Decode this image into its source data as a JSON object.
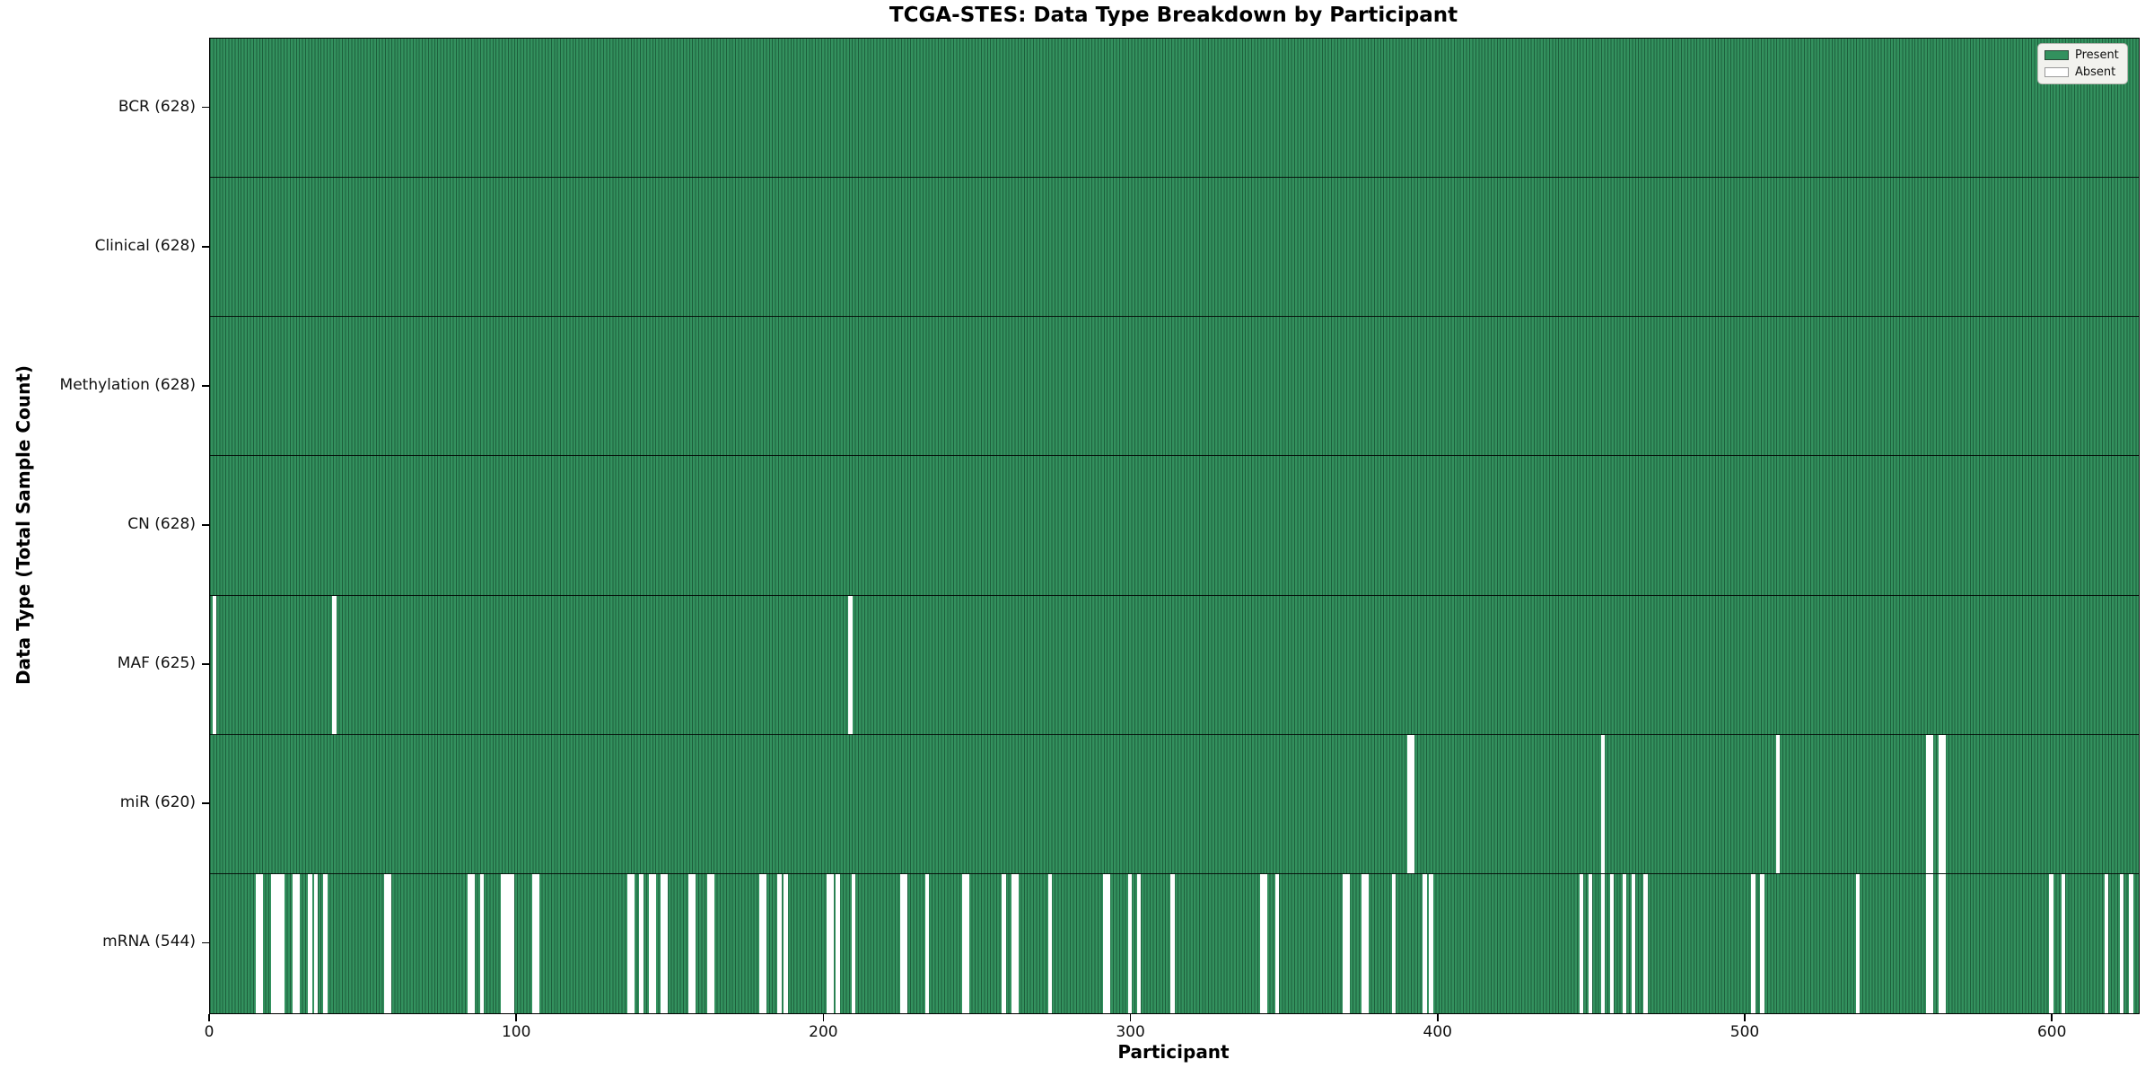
{
  "chart_data": {
    "type": "heatmap",
    "title": "TCGA-STES: Data Type Breakdown by Participant",
    "xlabel": "Participant",
    "ylabel": "Data Type (Total Sample Count)",
    "x_ticks": [
      0,
      100,
      200,
      300,
      400,
      500,
      600
    ],
    "x_range": [
      0,
      628
    ],
    "n_participants": 628,
    "grid": false,
    "legend": {
      "position": "upper-right",
      "entries": [
        {
          "label": "Present",
          "color": "#33915e"
        },
        {
          "label": "Absent",
          "color": "#ffffff"
        }
      ]
    },
    "colors": {
      "present": "#33915e",
      "absent": "#ffffff",
      "cell_edge": "rgba(8,46,26,0.5)",
      "row_separator": "rgba(0,0,0,0.85)",
      "axis": "#000000",
      "legend_bg": "#f2f2ee"
    },
    "rows": [
      {
        "label": "BCR (628)",
        "data_type": "BCR",
        "present_count": 628,
        "absent_participants": []
      },
      {
        "label": "Clinical (628)",
        "data_type": "Clinical",
        "present_count": 628,
        "absent_participants": []
      },
      {
        "label": "Methylation (628)",
        "data_type": "Methylation",
        "present_count": 628,
        "absent_participants": []
      },
      {
        "label": "CN (628)",
        "data_type": "CN",
        "present_count": 628,
        "absent_participants": []
      },
      {
        "label": "MAF (625)",
        "data_type": "MAF",
        "present_count": 625,
        "absent_participants": [
          1,
          40,
          208
        ]
      },
      {
        "label": "miR (620)",
        "data_type": "miR",
        "present_count": 620,
        "absent_participants": [
          390,
          391,
          453,
          510,
          559,
          560,
          563,
          564
        ]
      },
      {
        "label": "mRNA (544)",
        "data_type": "mRNA",
        "present_count": 544,
        "absent_participants": [
          15,
          16,
          20,
          21,
          22,
          23,
          27,
          28,
          32,
          34,
          37,
          57,
          58,
          84,
          85,
          88,
          95,
          96,
          97,
          98,
          105,
          106,
          136,
          137,
          140,
          143,
          144,
          147,
          148,
          156,
          157,
          162,
          163,
          179,
          180,
          185,
          187,
          201,
          202,
          204,
          209,
          225,
          226,
          233,
          245,
          246,
          258,
          261,
          262,
          273,
          291,
          292,
          299,
          302,
          313,
          342,
          343,
          347,
          369,
          370,
          375,
          376,
          385,
          395,
          397,
          446,
          449,
          453,
          456,
          460,
          463,
          467,
          502,
          505,
          536,
          559,
          560,
          563,
          564,
          599,
          603,
          617,
          622,
          625
        ]
      }
    ]
  }
}
